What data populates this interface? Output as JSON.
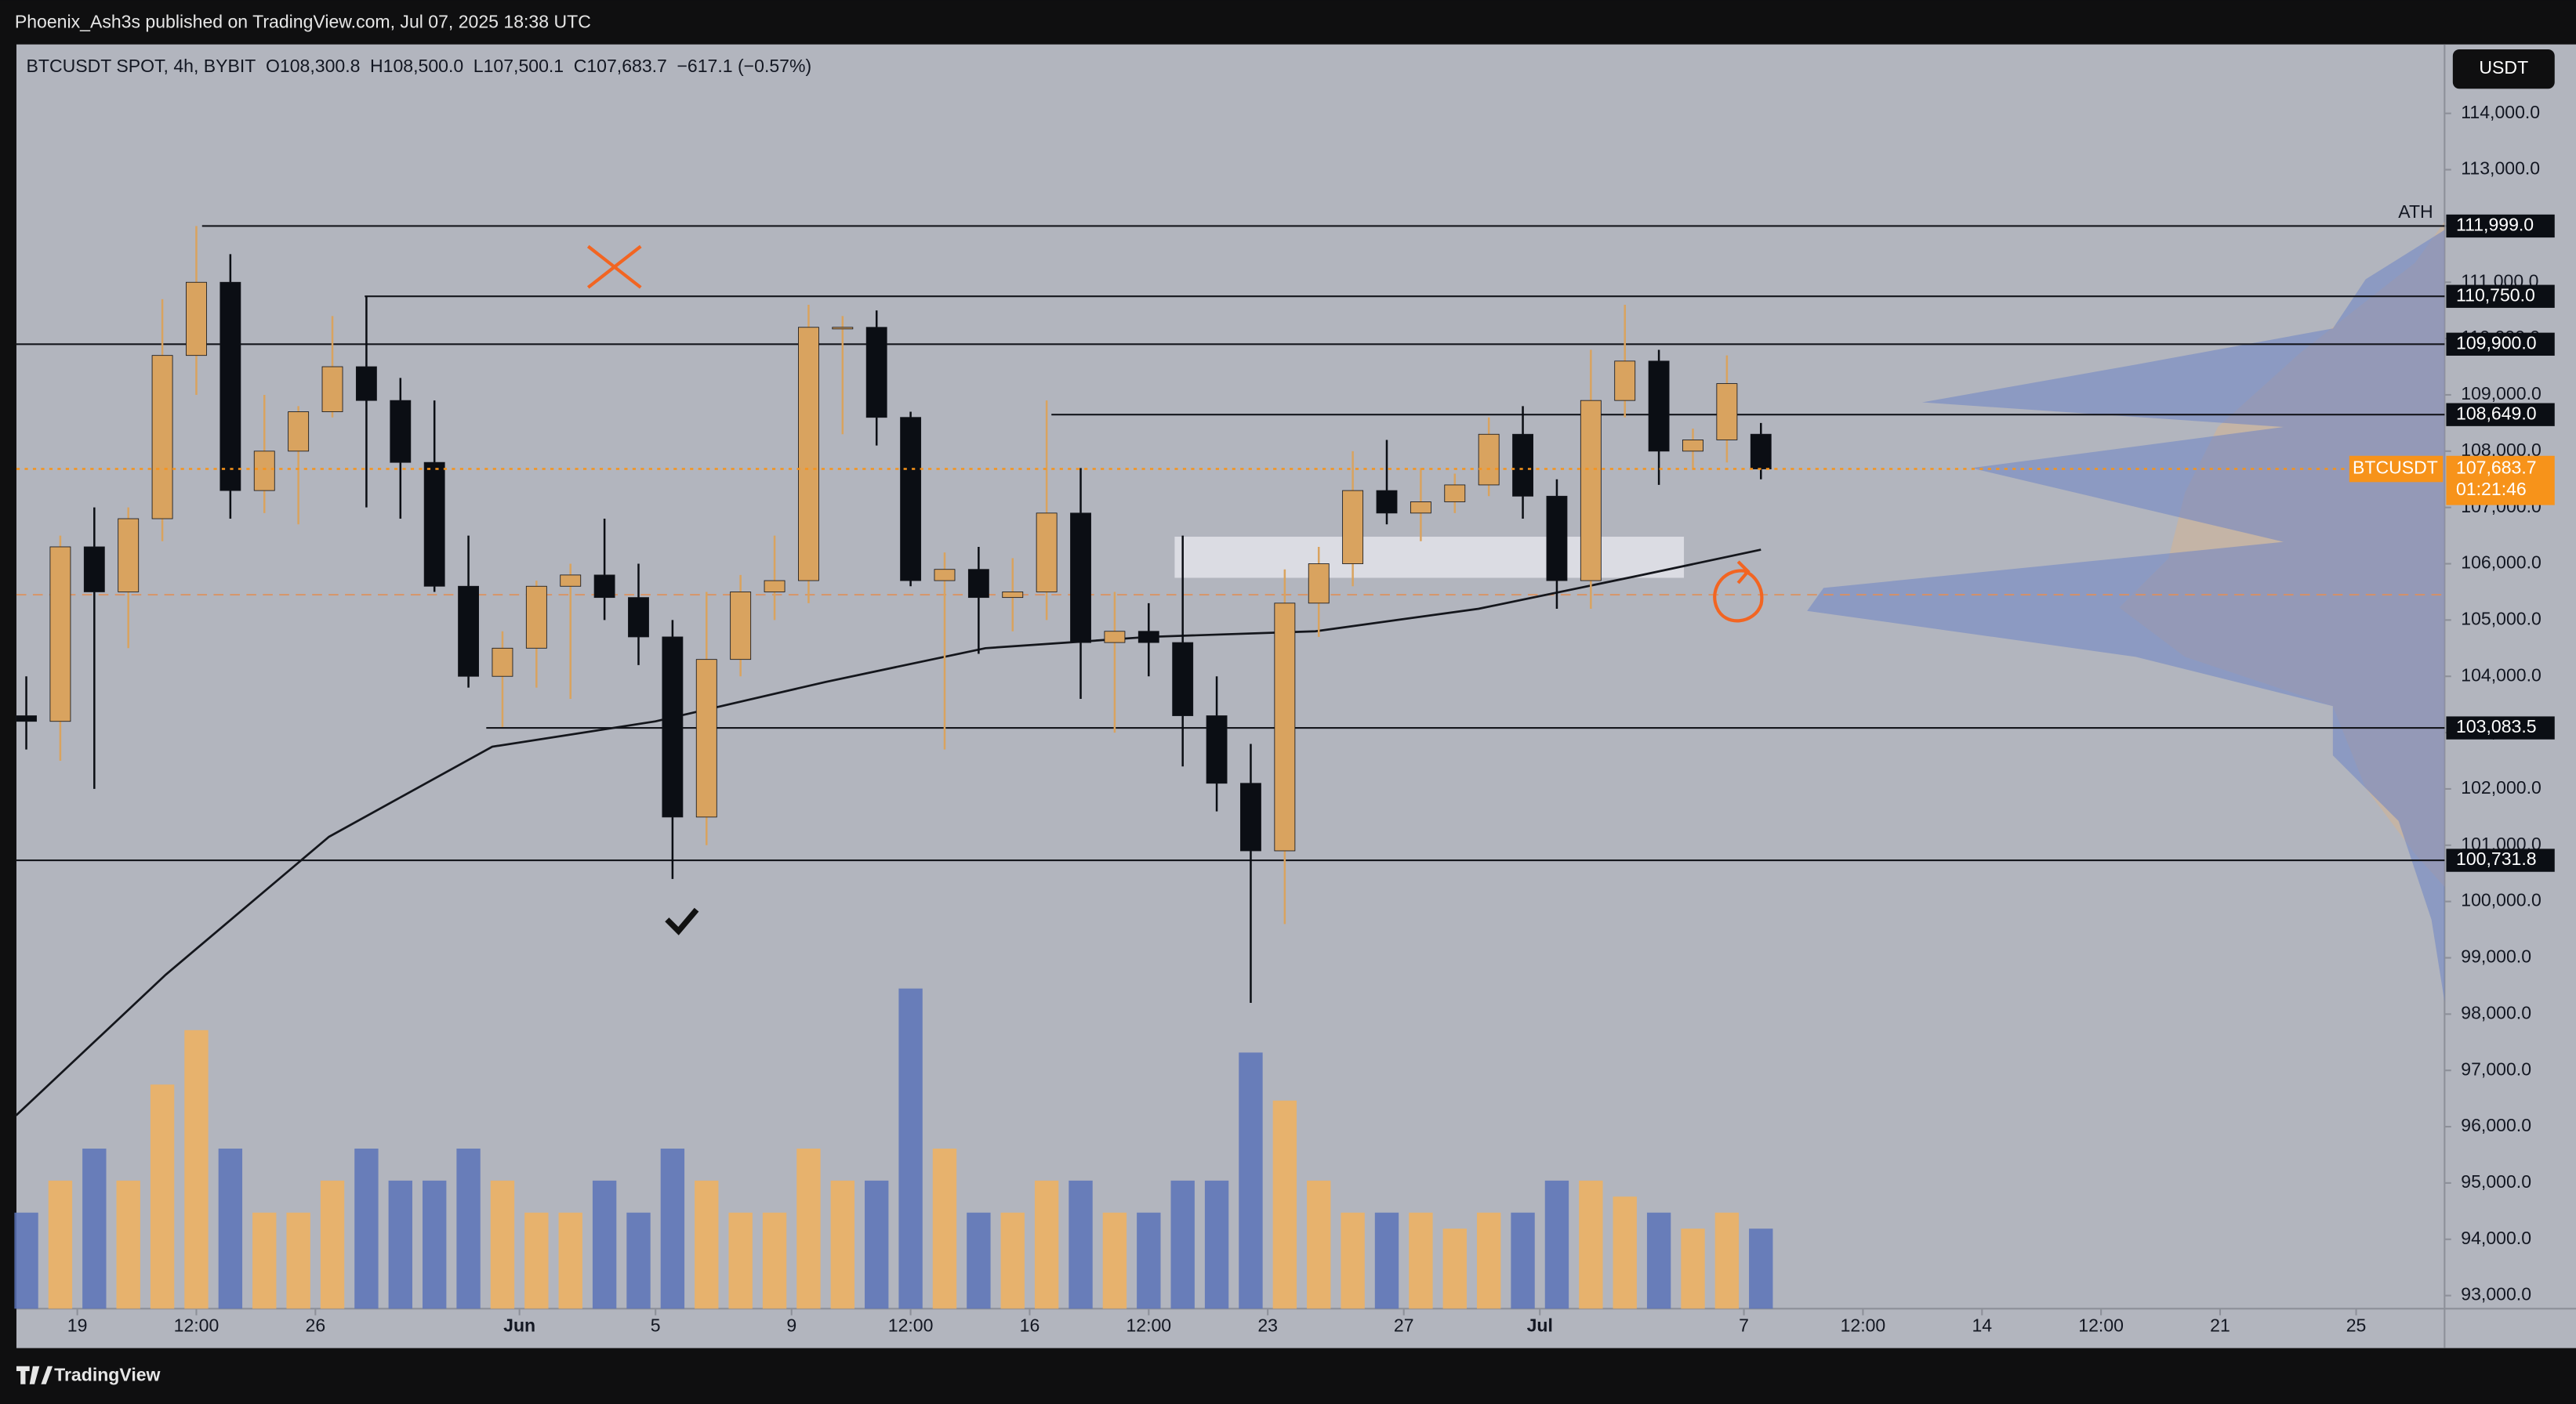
{
  "header": {
    "published": "Phoenix_Ash3s published on TradingView.com, Jul 07, 2025 18:38 UTC"
  },
  "legend": {
    "symbol": "BTCUSDT SPOT, 4h, BYBIT",
    "ohlc": [
      {
        "key": "O",
        "text": "108,300.8"
      },
      {
        "key": "H",
        "text": "108,500.0"
      },
      {
        "key": "L",
        "text": "107,500.1"
      },
      {
        "key": "C",
        "text": "107,683.7"
      }
    ],
    "change": "−617.1 (−0.57%)"
  },
  "currency": "USDT",
  "footer": {
    "brand": "TradingView"
  },
  "chart_data": {
    "type": "candlestick",
    "ylim": [
      92767,
      115225
    ],
    "xlim": [
      0.21,
      71.6
    ],
    "vlim": [
      0,
      10
    ],
    "up_color": "#d9a35f",
    "down_color": "#0b0e14",
    "volume_up_color": "#f0b25f",
    "volume_down_color": "#5a73b8",
    "yticks": [
      {
        "value": 93000,
        "label": "93,000.0"
      },
      {
        "value": 94000,
        "label": "94,000.0"
      },
      {
        "value": 95000,
        "label": "95,000.0"
      },
      {
        "value": 96000,
        "label": "96,000.0"
      },
      {
        "value": 97000,
        "label": "97,000.0"
      },
      {
        "value": 98000,
        "label": "98,000.0"
      },
      {
        "value": 99000,
        "label": "99,000.0"
      },
      {
        "value": 100000,
        "label": "100,000.0"
      },
      {
        "value": 101000,
        "label": "101,000.0"
      },
      {
        "value": 102000,
        "label": "102,000.0"
      },
      {
        "value": 103000,
        "label": "103,000.0"
      },
      {
        "value": 104000,
        "label": "104,000.0"
      },
      {
        "value": 105000,
        "label": "105,000.0"
      },
      {
        "value": 106000,
        "label": "106,000.0"
      },
      {
        "value": 107000,
        "label": "107,000.0"
      },
      {
        "value": 108000,
        "label": "108,000.0"
      },
      {
        "value": 109000,
        "label": "109,000.0"
      },
      {
        "value": 110000,
        "label": "110,000.0"
      },
      {
        "value": 111000,
        "label": "111,000.0"
      },
      {
        "value": 112000,
        "label": "112,000.0"
      },
      {
        "value": 113000,
        "label": "113,000.0"
      },
      {
        "value": 114000,
        "label": "114,000.0"
      }
    ],
    "xticks": [
      {
        "value": 2,
        "label": "19"
      },
      {
        "value": 5.5,
        "label": "12:00"
      },
      {
        "value": 9,
        "label": "26"
      },
      {
        "value": 15,
        "label": "Jun"
      },
      {
        "value": 19,
        "label": "5"
      },
      {
        "value": 23,
        "label": "9"
      },
      {
        "value": 26.5,
        "label": "12:00"
      },
      {
        "value": 30,
        "label": "16"
      },
      {
        "value": 33.5,
        "label": "12:00"
      },
      {
        "value": 37,
        "label": "23"
      },
      {
        "value": 41,
        "label": "27"
      },
      {
        "value": 45,
        "label": "Jul"
      },
      {
        "value": 51,
        "label": "7"
      },
      {
        "value": 54.5,
        "label": "12:00"
      },
      {
        "value": 58,
        "label": "14"
      },
      {
        "value": 61.5,
        "label": "12:00"
      },
      {
        "value": 65,
        "label": "21"
      },
      {
        "value": 69,
        "label": "25"
      }
    ],
    "candles": [
      [
        103300,
        104000,
        102700,
        103200
      ],
      [
        103200,
        106500,
        102500,
        106300
      ],
      [
        106300,
        107000,
        102000,
        105500
      ],
      [
        105500,
        107000,
        104500,
        106800
      ],
      [
        106800,
        110700,
        106400,
        109700
      ],
      [
        109700,
        111999,
        109000,
        111000
      ],
      [
        111000,
        111500,
        106800,
        107300
      ],
      [
        107300,
        109000,
        106900,
        108000
      ],
      [
        108000,
        108800,
        106700,
        108700
      ],
      [
        108700,
        110400,
        108600,
        109500
      ],
      [
        109500,
        110750,
        107000,
        108900
      ],
      [
        108900,
        109300,
        106800,
        107800
      ],
      [
        107800,
        108900,
        105500,
        105600
      ],
      [
        105600,
        106500,
        103800,
        104000
      ],
      [
        104000,
        104800,
        103100,
        104500
      ],
      [
        104500,
        105700,
        103800,
        105600
      ],
      [
        105600,
        106000,
        103600,
        105800
      ],
      [
        105800,
        106800,
        105000,
        105400
      ],
      [
        105400,
        106000,
        104200,
        104700
      ],
      [
        104700,
        105000,
        100400,
        101500
      ],
      [
        101500,
        105500,
        101000,
        104300
      ],
      [
        104300,
        105800,
        104000,
        105500
      ],
      [
        105500,
        106500,
        105000,
        105700
      ],
      [
        105700,
        110600,
        105300,
        110200
      ],
      [
        110200,
        110400,
        108300,
        110200
      ],
      [
        110200,
        110500,
        108100,
        108600
      ],
      [
        108600,
        108700,
        105600,
        105700
      ],
      [
        105700,
        106200,
        102700,
        105900
      ],
      [
        105900,
        106300,
        104400,
        105400
      ],
      [
        105400,
        106100,
        104800,
        105500
      ],
      [
        105500,
        108900,
        105000,
        106900
      ],
      [
        106900,
        107700,
        103600,
        104600
      ],
      [
        104600,
        105500,
        103000,
        104800
      ],
      [
        104800,
        105300,
        104000,
        104600
      ],
      [
        104600,
        106500,
        102400,
        103300
      ],
      [
        103300,
        104000,
        101600,
        102100
      ],
      [
        102100,
        102800,
        98200,
        100900
      ],
      [
        100900,
        105900,
        99600,
        105300
      ],
      [
        105300,
        106300,
        104700,
        106000
      ],
      [
        106000,
        108000,
        105600,
        107300
      ],
      [
        107300,
        108200,
        106700,
        106900
      ],
      [
        106900,
        107700,
        106400,
        107100
      ],
      [
        107100,
        107600,
        106900,
        107400
      ],
      [
        107400,
        108600,
        107200,
        108300
      ],
      [
        108300,
        108800,
        106800,
        107200
      ],
      [
        107200,
        107500,
        105200,
        105700
      ],
      [
        105700,
        109800,
        105200,
        108900
      ],
      [
        108900,
        110600,
        108600,
        109600
      ],
      [
        109600,
        109800,
        107400,
        108000
      ],
      [
        108000,
        108400,
        107700,
        108200
      ],
      [
        108200,
        109700,
        107800,
        109200
      ],
      [
        108300.8,
        108500,
        107500.1,
        107683.7
      ]
    ],
    "volume": [
      3,
      4,
      5,
      4,
      7,
      8.7,
      5,
      3,
      3,
      4,
      5,
      4,
      4,
      5,
      4,
      3,
      3,
      4,
      3,
      5,
      4,
      3,
      3,
      5,
      4,
      4,
      10,
      5,
      3,
      3,
      4,
      4,
      3,
      3,
      4,
      4,
      8,
      6.5,
      4,
      3,
      3,
      3,
      2.5,
      3,
      3,
      4,
      4,
      3.5,
      3,
      2.5,
      3,
      2.5
    ],
    "moving_average": {
      "x": [
        0.2,
        4.6,
        9.4,
        14.2,
        19,
        24,
        28.7,
        33.5,
        38.4,
        43.2,
        48,
        51.5
      ],
      "values": [
        96200,
        98700,
        101150,
        102750,
        103200,
        103900,
        104500,
        104700,
        104800,
        105200,
        105800,
        106250
      ]
    },
    "levels": [
      {
        "value": 111999,
        "label": "111,999.0"
      },
      {
        "value": 110750,
        "label": "110,750.0"
      },
      {
        "value": 109900,
        "label": "109,900.0"
      },
      {
        "value": 108649,
        "label": "108,649.0"
      },
      {
        "value": 103083.5,
        "label": "103,083.5"
      },
      {
        "value": 100731.8,
        "label": "100,731.8"
      }
    ],
    "ath_label": "ATH",
    "current": {
      "value": 107683.7,
      "label": "107,683.7",
      "symbol": "BTCUSDT",
      "countdown": "01:21:46"
    },
    "poc": 105450,
    "zone": [
      105750,
      106480
    ]
  }
}
